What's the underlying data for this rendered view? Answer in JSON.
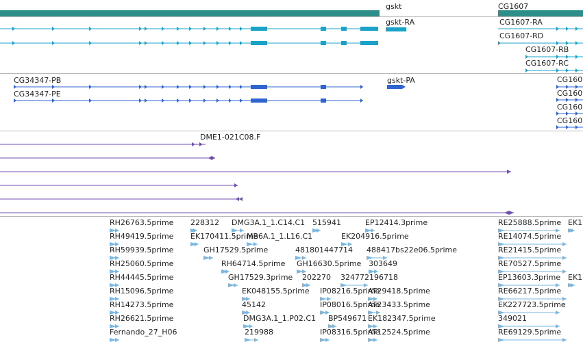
{
  "colors": {
    "gene": "#2e8f8a",
    "transcript": "#1aa2c8",
    "protein": "#2f63d0",
    "est": "#6f4fb0",
    "cdna": "#7ab7e3",
    "divider": "#b9b9b9"
  },
  "gene_track": {
    "genes": [
      "gskt",
      "CG1607"
    ]
  },
  "transcript_track": {
    "labels": [
      "gskt-RA",
      "CG1607-RA",
      "CG1607-RD",
      "CG1607-RB",
      "CG1607-RC"
    ]
  },
  "protein_track": {
    "labels": [
      "CG34347-PB",
      "CG34347-PE",
      "gskt-PA",
      "CG160",
      "CG160",
      "CG160",
      "CG160"
    ]
  },
  "est_track": {
    "labels": [
      "DME1-021C08.F"
    ]
  },
  "cdna_track": {
    "labels": [
      "RH26763.5prime",
      "228312",
      "DMG3A.1_1.C14.C1",
      "515941",
      "EP12414.3prime",
      "RE25888.5prime",
      "EK1",
      "RH49419.5prime",
      "EK170411.5prime",
      "MB6A.1_1.L16.C1",
      "EK204916.5prime",
      "RE14074.5prime",
      "RH59939.5prime",
      "GH17529.5prime",
      "481801447714",
      "488417bs22e06.5prime",
      "RE21415.5prime",
      "RH25060.5prime",
      "RH64714.5prime",
      "GH16630.5prime",
      "303649",
      "RE70527.5prime",
      "RH44445.5prime",
      "GH17529.3prime",
      "202270",
      "324772196718",
      "EP13603.3prime",
      "EK1",
      "RH15096.5prime",
      "EK048155.5prime",
      "IP08216.5prime",
      "AT29418.5prime",
      "RE66217.5prime",
      "RH14273.5prime",
      "45142",
      "IP08016.5prime",
      "AT23433.5prime",
      "EK227723.5prime",
      "RH26621.5prime",
      "DMG3A.1_1.P02.C1",
      "BP549671",
      "EK182347.5prime",
      "349021",
      "Fernando_27_H06",
      "219988",
      "IP08316.5prime",
      "AT12524.5prime",
      "RE69129.5prime"
    ]
  }
}
